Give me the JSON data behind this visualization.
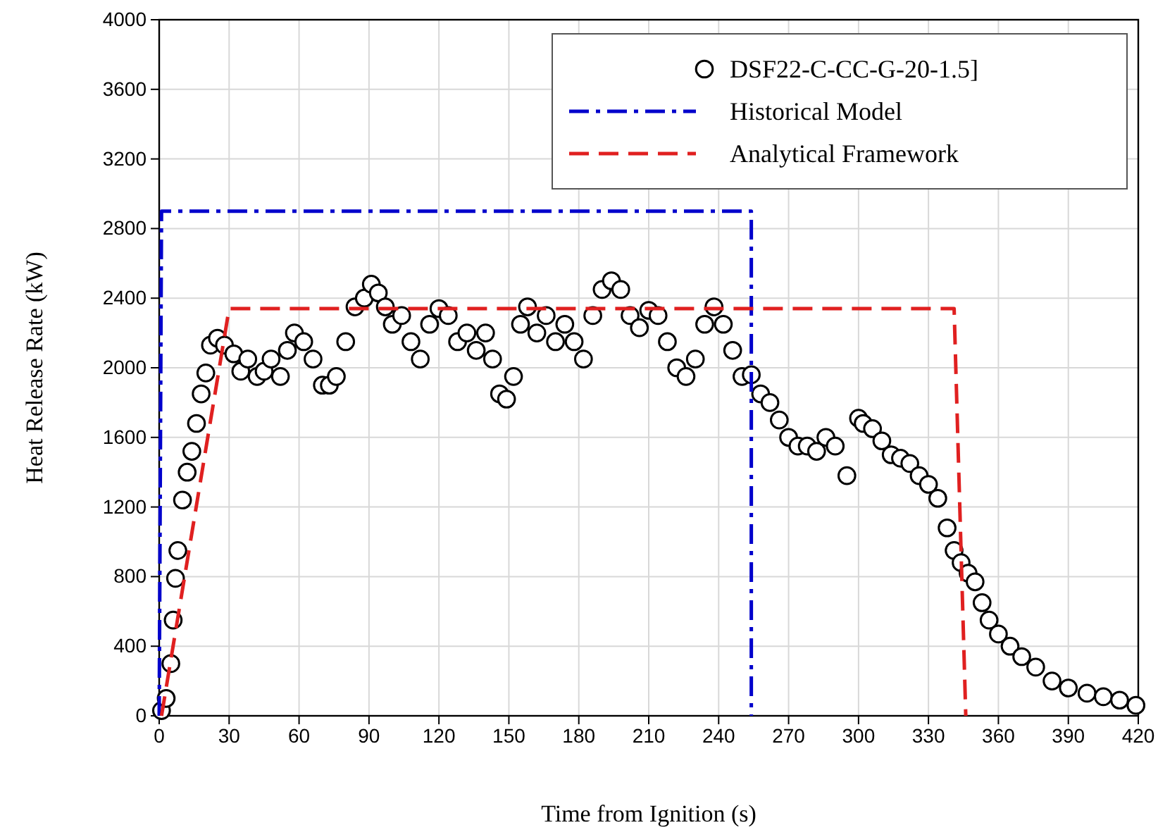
{
  "chart_data": {
    "type": "scatter",
    "xlabel": "Time from Ignition (s)",
    "ylabel": "Heat Release Rate (kW)",
    "xlim": [
      0,
      420
    ],
    "xticks": [
      0,
      30,
      60,
      90,
      120,
      150,
      180,
      210,
      240,
      270,
      300,
      330,
      360,
      390,
      420
    ],
    "ylim": [
      0,
      4000
    ],
    "yticks": [
      0,
      400,
      800,
      1200,
      1600,
      2000,
      2400,
      2800,
      3200,
      3600,
      4000
    ],
    "grid": true,
    "legend": "top right",
    "series": [
      {
        "name": "DSF22-C-CC-G-20-1.5]",
        "marker": "circle",
        "color": "#000000",
        "x": [
          1,
          3,
          5,
          6,
          7,
          8,
          10,
          12,
          14,
          16,
          18,
          20,
          22,
          25,
          28,
          32,
          35,
          38,
          42,
          45,
          48,
          52,
          55,
          58,
          62,
          66,
          70,
          73,
          76,
          80,
          84,
          88,
          91,
          94,
          97,
          100,
          104,
          108,
          112,
          116,
          120,
          124,
          128,
          132,
          136,
          140,
          143,
          146,
          149,
          152,
          155,
          158,
          162,
          166,
          170,
          174,
          178,
          182,
          186,
          190,
          194,
          198,
          202,
          206,
          210,
          214,
          218,
          222,
          226,
          230,
          234,
          238,
          242,
          246,
          250,
          254,
          258,
          262,
          266,
          270,
          274,
          278,
          282,
          286,
          290,
          295,
          300,
          302,
          306,
          310,
          314,
          318,
          322,
          326,
          330,
          334,
          338,
          341,
          344,
          347,
          350,
          353,
          356,
          360,
          365,
          370,
          376,
          383,
          390,
          398,
          405,
          412,
          419
        ],
        "values": [
          30,
          100,
          300,
          550,
          790,
          950,
          1240,
          1400,
          1520,
          1680,
          1850,
          1970,
          2130,
          2170,
          2130,
          2080,
          1980,
          2050,
          1950,
          1980,
          2050,
          1950,
          2100,
          2200,
          2150,
          2050,
          1900,
          1900,
          1950,
          2150,
          2350,
          2400,
          2480,
          2430,
          2350,
          2250,
          2300,
          2150,
          2050,
          2250,
          2340,
          2300,
          2150,
          2200,
          2100,
          2200,
          2050,
          1850,
          1820,
          1950,
          2250,
          2350,
          2200,
          2300,
          2150,
          2250,
          2150,
          2050,
          2300,
          2450,
          2500,
          2450,
          2300,
          2230,
          2330,
          2300,
          2150,
          2000,
          1950,
          2050,
          2250,
          2350,
          2250,
          2100,
          1950,
          1960,
          1850,
          1800,
          1700,
          1600,
          1550,
          1550,
          1520,
          1600,
          1550,
          1380,
          1710,
          1680,
          1650,
          1580,
          1500,
          1480,
          1450,
          1380,
          1330,
          1250,
          1080,
          950,
          880,
          820,
          770,
          650,
          550,
          470,
          400,
          340,
          280,
          200,
          160,
          130,
          110,
          90,
          60
        ]
      },
      {
        "name": "Historical Model",
        "type": "line",
        "line_style": "dashdot",
        "color": "#0000cc",
        "x": [
          0,
          1,
          254,
          254
        ],
        "values": [
          0,
          2900,
          2900,
          0
        ]
      },
      {
        "name": "Analytical Framework",
        "type": "line",
        "line_style": "dashed",
        "color": "#e02020",
        "x": [
          1,
          30,
          341,
          346
        ],
        "values": [
          0,
          2340,
          2340,
          0
        ]
      }
    ]
  }
}
